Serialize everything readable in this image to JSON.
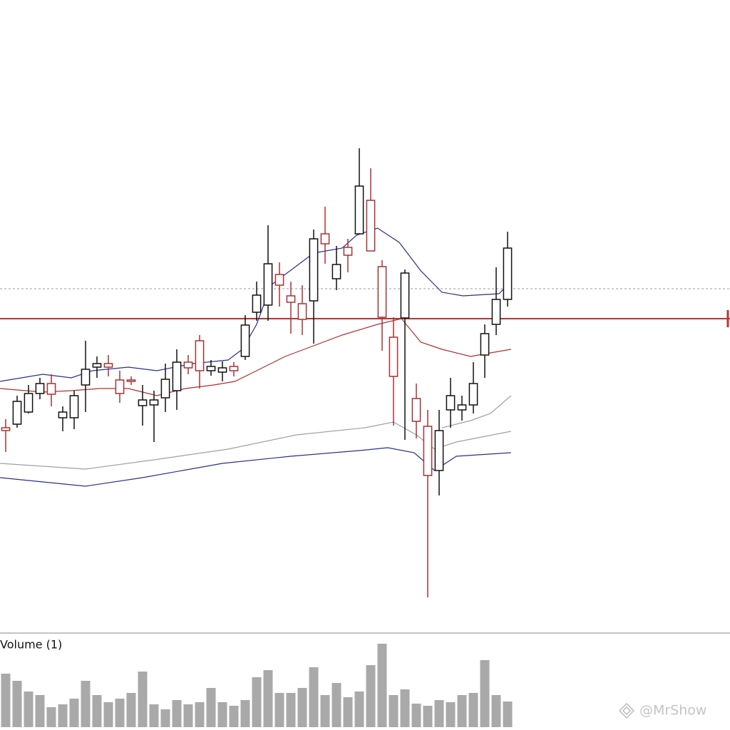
{
  "chart_data": {
    "type": "candlestick",
    "xlim": [
      -0.5,
      63.5
    ],
    "ylim": [
      0,
      88
    ],
    "up_color": "#111111",
    "down_color": "#a83232",
    "open": [
      28.0,
      28.5,
      30.2,
      32.8,
      34.2,
      29.4,
      29.4,
      34.0,
      36.5,
      37.0,
      34.7,
      34.7,
      31.1,
      31.2,
      32.2,
      33.2,
      37.2,
      40.2,
      36.0,
      35.8,
      36.6,
      38.0,
      44.2,
      45.2,
      49.5,
      46.5,
      45.4,
      45.8,
      55.2,
      48.9,
      53.3,
      55.2,
      59.9,
      50.6,
      40.7,
      43.4,
      32.1,
      28.2,
      22.0,
      30.5,
      30.5,
      31.2,
      38.2,
      42.5,
      46.0
    ],
    "close": [
      27.6,
      31.7,
      32.8,
      34.2,
      32.7,
      30.2,
      32.5,
      36.2,
      37.0,
      36.5,
      32.8,
      34.5,
      31.9,
      31.9,
      34.8,
      37.2,
      36.4,
      36.0,
      36.6,
      36.4,
      36.0,
      42.4,
      46.6,
      51.0,
      48.0,
      45.6,
      43.2,
      54.5,
      53.8,
      50.9,
      52.2,
      61.9,
      52.8,
      43.5,
      35.2,
      49.7,
      28.9,
      21.3,
      27.6,
      32.5,
      31.2,
      34.2,
      41.2,
      46.0,
      53.2
    ],
    "high": [
      29.2,
      32.5,
      34.0,
      35.0,
      35.5,
      31.0,
      33.2,
      40.2,
      38.0,
      38.2,
      36.0,
      35.2,
      34.0,
      33.2,
      37.0,
      39.0,
      38.2,
      41.0,
      37.5,
      37.3,
      37.2,
      43.8,
      48.5,
      56.4,
      51.2,
      48.5,
      48.0,
      55.8,
      59.0,
      53.5,
      54.5,
      67.2,
      64.4,
      51.5,
      43.5,
      50.2,
      34.2,
      30.5,
      30.5,
      35.0,
      32.5,
      37.2,
      42.5,
      50.5,
      55.5
    ],
    "low": [
      24.6,
      28.0,
      30.0,
      32.0,
      31.0,
      27.5,
      27.8,
      30.2,
      35.0,
      35.2,
      31.5,
      34.0,
      28.3,
      26.0,
      30.2,
      30.5,
      35.5,
      33.5,
      35.3,
      34.5,
      35.2,
      37.5,
      43.0,
      43.0,
      45.0,
      41.2,
      41.0,
      39.8,
      51.0,
      47.3,
      49.8,
      55.2,
      52.8,
      38.8,
      28.3,
      26.3,
      26.5,
      4.2,
      18.5,
      28.0,
      29.0,
      30.0,
      35.0,
      41.0,
      45.0
    ],
    "lines": [
      {
        "color": "#2b2f8c",
        "x": [
          -0.5,
          3.25,
          5.75,
          7.6,
          10.75,
          13.25,
          16.4,
          19.5,
          20.75,
          22,
          23.25,
          25.75,
          27,
          29.5,
          30.75,
          32.6,
          34.5,
          36.4,
          38.25,
          40.1,
          43.25,
          44.3
        ],
        "values": [
          34.5,
          35.5,
          35.0,
          36.0,
          36.5,
          36.0,
          37.0,
          37.5,
          39.0,
          42.5,
          48.0,
          51.0,
          52.5,
          53.2,
          55.0,
          56.0,
          54.0,
          50.0,
          47.0,
          46.5,
          46.8,
          48.5
        ]
      },
      {
        "color": "#b03030",
        "x": [
          -0.5,
          3.25,
          5.75,
          8.25,
          10.75,
          13.25,
          15.75,
          18.25,
          20.1,
          22,
          24.5,
          27,
          29.5,
          32.6,
          34.7,
          36.4,
          38.25,
          40.75,
          42.5,
          44.3
        ],
        "values": [
          33.5,
          33.0,
          33.2,
          33.5,
          33.5,
          32.5,
          33.5,
          34.0,
          34.5,
          36.0,
          38.0,
          39.5,
          41.0,
          42.5,
          43.3,
          40.0,
          39.0,
          38.0,
          38.5,
          39.0
        ]
      },
      {
        "color": "#a0a0a0",
        "x": [
          -0.5,
          7,
          13,
          19.5,
          25.5,
          31.5,
          34,
          36,
          37.6,
          39.5,
          44.3
        ],
        "values": [
          23.0,
          22.2,
          23.5,
          25.0,
          27.0,
          28.0,
          28.8,
          27.0,
          25.0,
          26.0,
          27.5
        ]
      },
      {
        "color": "#a0a0a0",
        "x": [
          38.25,
          40.75,
          42.5,
          44.3
        ],
        "values": [
          28.0,
          29.0,
          30.0,
          32.5
        ]
      },
      {
        "color": "#2b2f8c",
        "x": [
          -0.5,
          7,
          12,
          19,
          25,
          31,
          33.5,
          35.8,
          37.6,
          39.5,
          44.3
        ],
        "values": [
          21.0,
          19.8,
          21.0,
          23.0,
          24.0,
          24.8,
          25.2,
          24.5,
          22.0,
          24.0,
          24.5
        ]
      }
    ],
    "hlines": [
      {
        "value": 43.3,
        "color": "#c03030",
        "style": "solid"
      },
      {
        "value": 47.5,
        "color": "#999999",
        "style": "dashed"
      }
    ],
    "volume": {
      "title": "Volume (1)",
      "color": "#a9a9a9",
      "ylim": [
        0,
        130
      ],
      "values": [
        75,
        65,
        50,
        45,
        28,
        32,
        40,
        65,
        45,
        35,
        40,
        48,
        78,
        32,
        25,
        38,
        32,
        35,
        55,
        35,
        30,
        38,
        70,
        80,
        48,
        48,
        55,
        84,
        45,
        62,
        42,
        50,
        87,
        117,
        45,
        53,
        33,
        30,
        38,
        35,
        45,
        48,
        94,
        45,
        36
      ]
    },
    "watermark": "@MrShow"
  }
}
